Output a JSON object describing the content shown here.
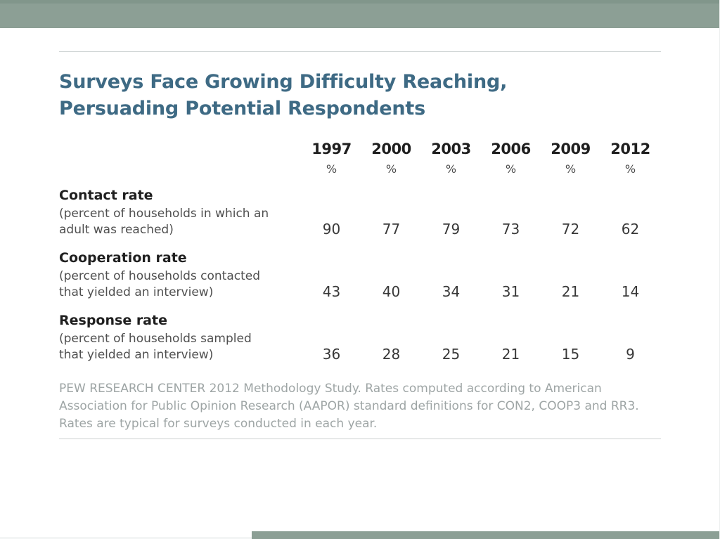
{
  "colors": {
    "banner": "#8C9F95",
    "banner-edge": "#81968B",
    "title": "#3E6A84",
    "text-dark": "#1F1F1F",
    "text-body": "#4F4F4F",
    "value": "#383838",
    "source": "#9EA5A5",
    "rule": "#CDD2D2",
    "bottom-edge": "#F3F5F5"
  },
  "chart": {
    "title_line1": "Surveys Face Growing Difficulty Reaching,",
    "title_line2": "Persuading Potential Respondents"
  },
  "chart_data": {
    "type": "table",
    "title": "Surveys Face Growing Difficulty Reaching, Persuading Potential Respondents",
    "columns": [
      "1997",
      "2000",
      "2003",
      "2006",
      "2009",
      "2012"
    ],
    "unit_row": [
      "%",
      "%",
      "%",
      "%",
      "%",
      "%"
    ],
    "rows": [
      {
        "label": "Contact rate",
        "description": "(percent of households in which an adult was reached)",
        "values": [
          90,
          77,
          79,
          73,
          72,
          62
        ]
      },
      {
        "label": "Cooperation rate",
        "description": "(percent of households contacted that yielded an interview)",
        "values": [
          43,
          40,
          34,
          31,
          21,
          14
        ]
      },
      {
        "label": "Response rate",
        "description": "(percent of households sampled that yielded an interview)",
        "values": [
          36,
          28,
          25,
          21,
          15,
          9
        ]
      }
    ],
    "source_note": "PEW RESEARCH CENTER 2012 Methodology Study. Rates computed according to American Association for Public Opinion Research (AAPOR) standard definitions for CON2, COOP3 and RR3. Rates are typical for surveys conducted in each year.",
    "legend_position": "none",
    "grid": false
  }
}
